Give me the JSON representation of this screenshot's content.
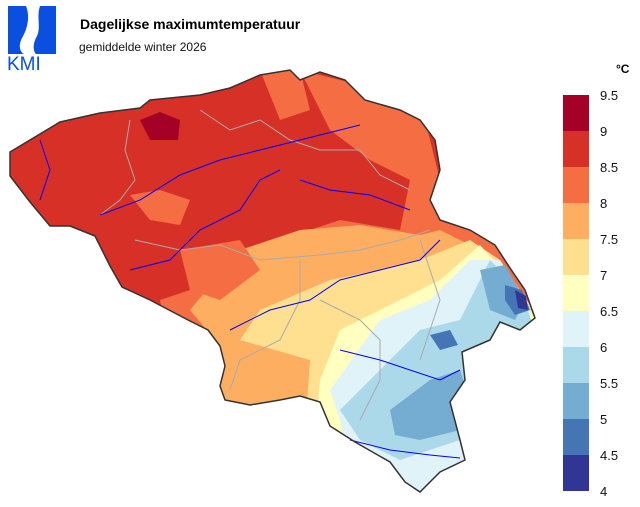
{
  "logo": {
    "text": "KMI",
    "color": "#0a4fe0"
  },
  "title": "Dagelijkse maximumtemperatuur",
  "subtitle": "gemiddelde winter 2026",
  "legend": {
    "unit": "°C",
    "ticks": [
      "9.5",
      "9",
      "8.5",
      "8",
      "7.5",
      "7",
      "6.5",
      "6",
      "5.5",
      "5",
      "4.5",
      "4"
    ],
    "colors": [
      "#a50026",
      "#d73027",
      "#f46d43",
      "#fdae61",
      "#fee090",
      "#ffffbf",
      "#e0f3f8",
      "#abd9e9",
      "#74add1",
      "#4575b4",
      "#313695"
    ]
  },
  "map": {
    "region": "Belgium",
    "rivers_color": "#0000ff",
    "borders_color": "#aaaaaa",
    "outline_color": "#333333"
  }
}
